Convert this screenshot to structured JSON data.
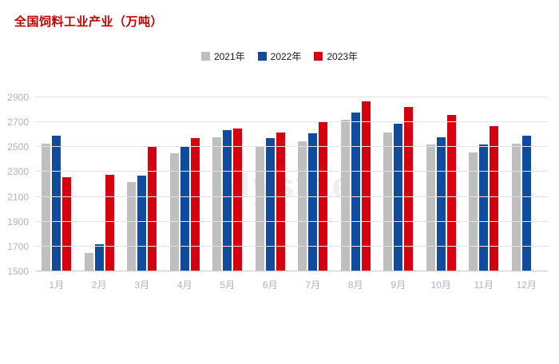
{
  "title": "全国饲料工业产业（万吨）",
  "watermark": "Mysteel",
  "colors": {
    "title": "#c00000",
    "series_2021": "#bfbfbf",
    "series_2022": "#0f4c9e",
    "series_2023": "#d7000f",
    "axis_text": "#b3b3b3",
    "gridline": "#e3e3e3"
  },
  "chart_data": {
    "type": "bar",
    "title": "全国饲料工业产业（万吨）",
    "categories": [
      "1月",
      "2月",
      "3月",
      "4月",
      "5月",
      "6月",
      "7月",
      "8月",
      "9月",
      "10月",
      "11月",
      "12月"
    ],
    "series": [
      {
        "name": "2021年",
        "color": "#bfbfbf",
        "values": [
          2530,
          1650,
          2220,
          2450,
          2580,
          2510,
          2550,
          2720,
          2620,
          2520,
          2460,
          2530
        ]
      },
      {
        "name": "2022年",
        "color": "#0f4c9e",
        "values": [
          2590,
          1720,
          2270,
          2500,
          2640,
          2570,
          2610,
          2780,
          2690,
          2580,
          2520,
          2590
        ]
      },
      {
        "name": "2023年",
        "color": "#d7000f",
        "values": [
          2260,
          2280,
          2510,
          2570,
          2650,
          2620,
          2710,
          2870,
          2820,
          2760,
          2670,
          null
        ]
      }
    ],
    "xlabel": "",
    "ylabel": "",
    "ylim": [
      1500,
      2900
    ],
    "yticks": [
      1500,
      1700,
      1900,
      2100,
      2300,
      2500,
      2700,
      2900
    ],
    "grid": true,
    "legend_position": "top"
  }
}
